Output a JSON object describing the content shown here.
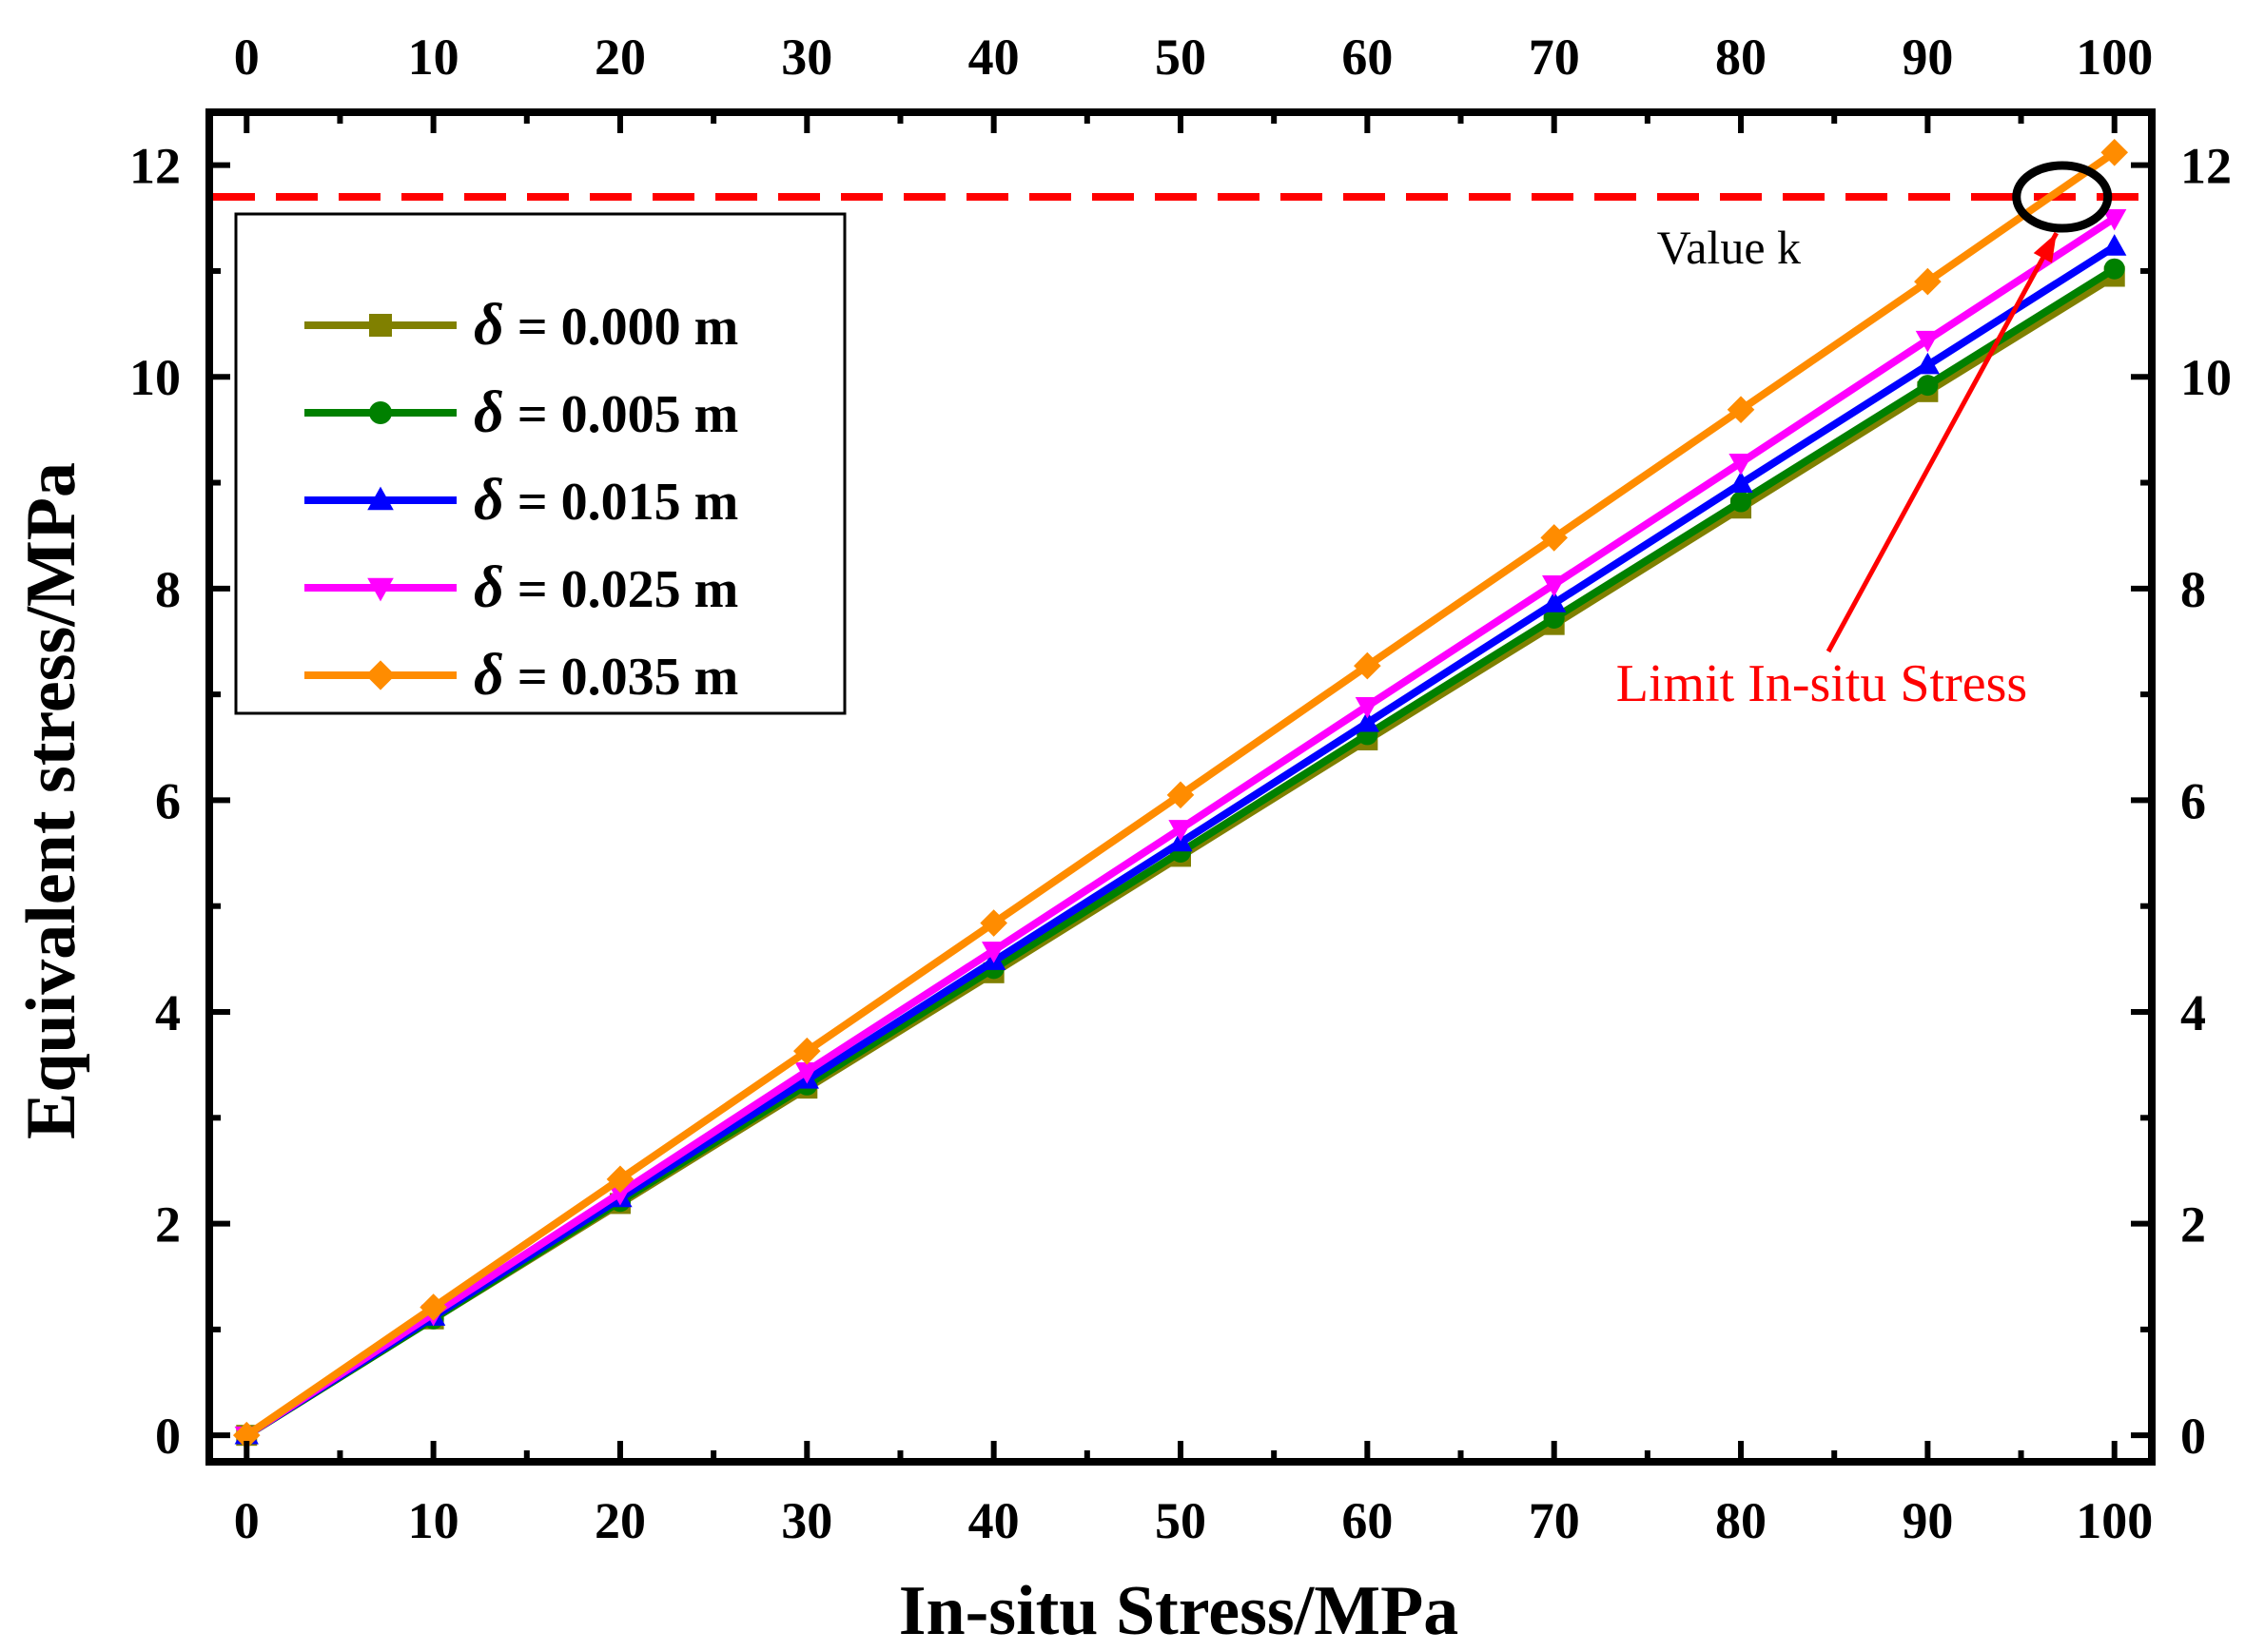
{
  "chart_data": {
    "type": "line",
    "xlabel": "In-situ Stress/MPa",
    "ylabel": "Equivalent stress/MPa",
    "xlim": [
      -2,
      102
    ],
    "ylim": [
      -0.25,
      12.5
    ],
    "x_ticks": [
      0,
      10,
      20,
      30,
      40,
      50,
      60,
      70,
      80,
      90,
      100
    ],
    "y_ticks": [
      0,
      2,
      4,
      6,
      8,
      10,
      12
    ],
    "grid": false,
    "legend_position": "top-left",
    "x": [
      0,
      10,
      20,
      30,
      40,
      50,
      60,
      70,
      80,
      90,
      100
    ],
    "series": [
      {
        "name": "δ = 0.000 m",
        "legend_symbol": "δ",
        "legend_rest": " = 0.000 m",
        "color": "#808000",
        "marker": "square",
        "values": [
          0,
          1.1,
          2.19,
          3.28,
          4.37,
          5.47,
          6.57,
          7.66,
          8.76,
          9.86,
          10.95
        ]
      },
      {
        "name": "δ = 0.005 m",
        "legend_symbol": "δ",
        "legend_rest": " = 0.005 m",
        "color": "#008000",
        "marker": "circle",
        "values": [
          0,
          1.1,
          2.21,
          3.31,
          4.41,
          5.51,
          6.62,
          7.72,
          8.82,
          9.92,
          11.02
        ]
      },
      {
        "name": "δ = 0.015 m",
        "legend_symbol": "δ",
        "legend_rest": " = 0.015 m",
        "color": "#0000ff",
        "marker": "triangle-up",
        "values": [
          0,
          1.12,
          2.24,
          3.36,
          4.48,
          5.6,
          6.73,
          7.86,
          8.99,
          10.11,
          11.23
        ]
      },
      {
        "name": "δ = 0.025 m",
        "legend_symbol": "δ",
        "legend_rest": " = 0.025 m",
        "color": "#ff00ff",
        "marker": "triangle-down",
        "values": [
          0,
          1.15,
          2.29,
          3.44,
          4.58,
          5.73,
          6.89,
          8.04,
          9.19,
          10.35,
          11.5
        ]
      },
      {
        "name": "δ = 0.035 m",
        "legend_symbol": "δ",
        "legend_rest": " = 0.035 m",
        "color": "#ff8c00",
        "marker": "diamond",
        "values": [
          0,
          1.21,
          2.42,
          3.63,
          4.84,
          6.05,
          7.27,
          8.48,
          9.69,
          10.9,
          12.12
        ]
      }
    ],
    "reference_line": {
      "y": 11.7,
      "color": "#ff0000",
      "style": "dashed",
      "label": "Value k"
    },
    "annotation": {
      "text": "Limit In-situ Stress",
      "color": "#ff0000",
      "point": {
        "x": 97.2,
        "y": 11.7
      }
    }
  }
}
